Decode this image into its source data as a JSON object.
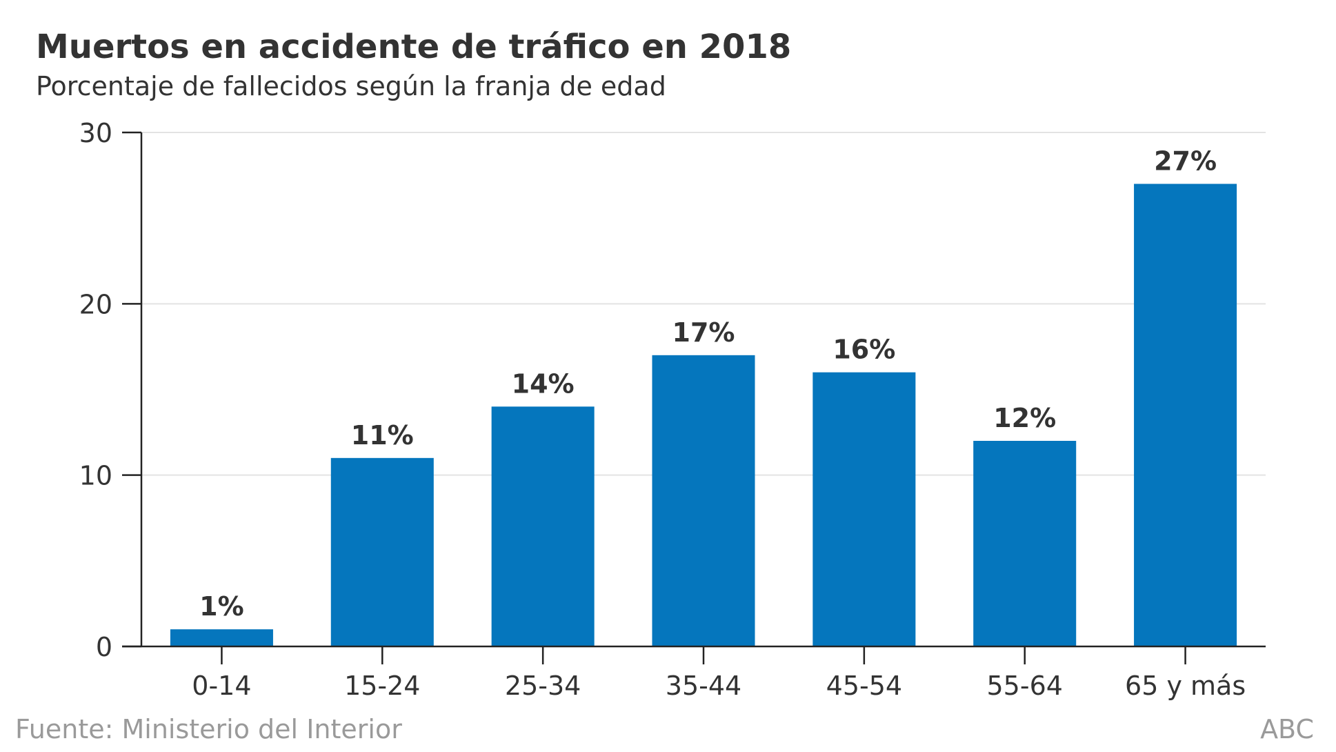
{
  "chart_data": {
    "type": "bar",
    "title": "Muertos en accidente de tráfico en 2018",
    "subtitle": "Porcentaje de fallecidos según la franja de edad",
    "categories": [
      "0-14",
      "15-24",
      "25-34",
      "35-44",
      "45-54",
      "55-64",
      "65 y más"
    ],
    "values": [
      1,
      11,
      14,
      17,
      16,
      12,
      27
    ],
    "data_labels": [
      "1%",
      "11%",
      "14%",
      "17%",
      "16%",
      "12%",
      "27%"
    ],
    "xlabel": "",
    "ylabel": "",
    "ylim": [
      0,
      30
    ],
    "yticks": [
      0,
      10,
      20,
      30
    ],
    "ytick_labels": [
      "0",
      "10",
      "20",
      "30"
    ],
    "grid": true,
    "bar_color": "#0576bd",
    "source": "Fuente: Ministerio del Interior",
    "brand": "ABC"
  }
}
